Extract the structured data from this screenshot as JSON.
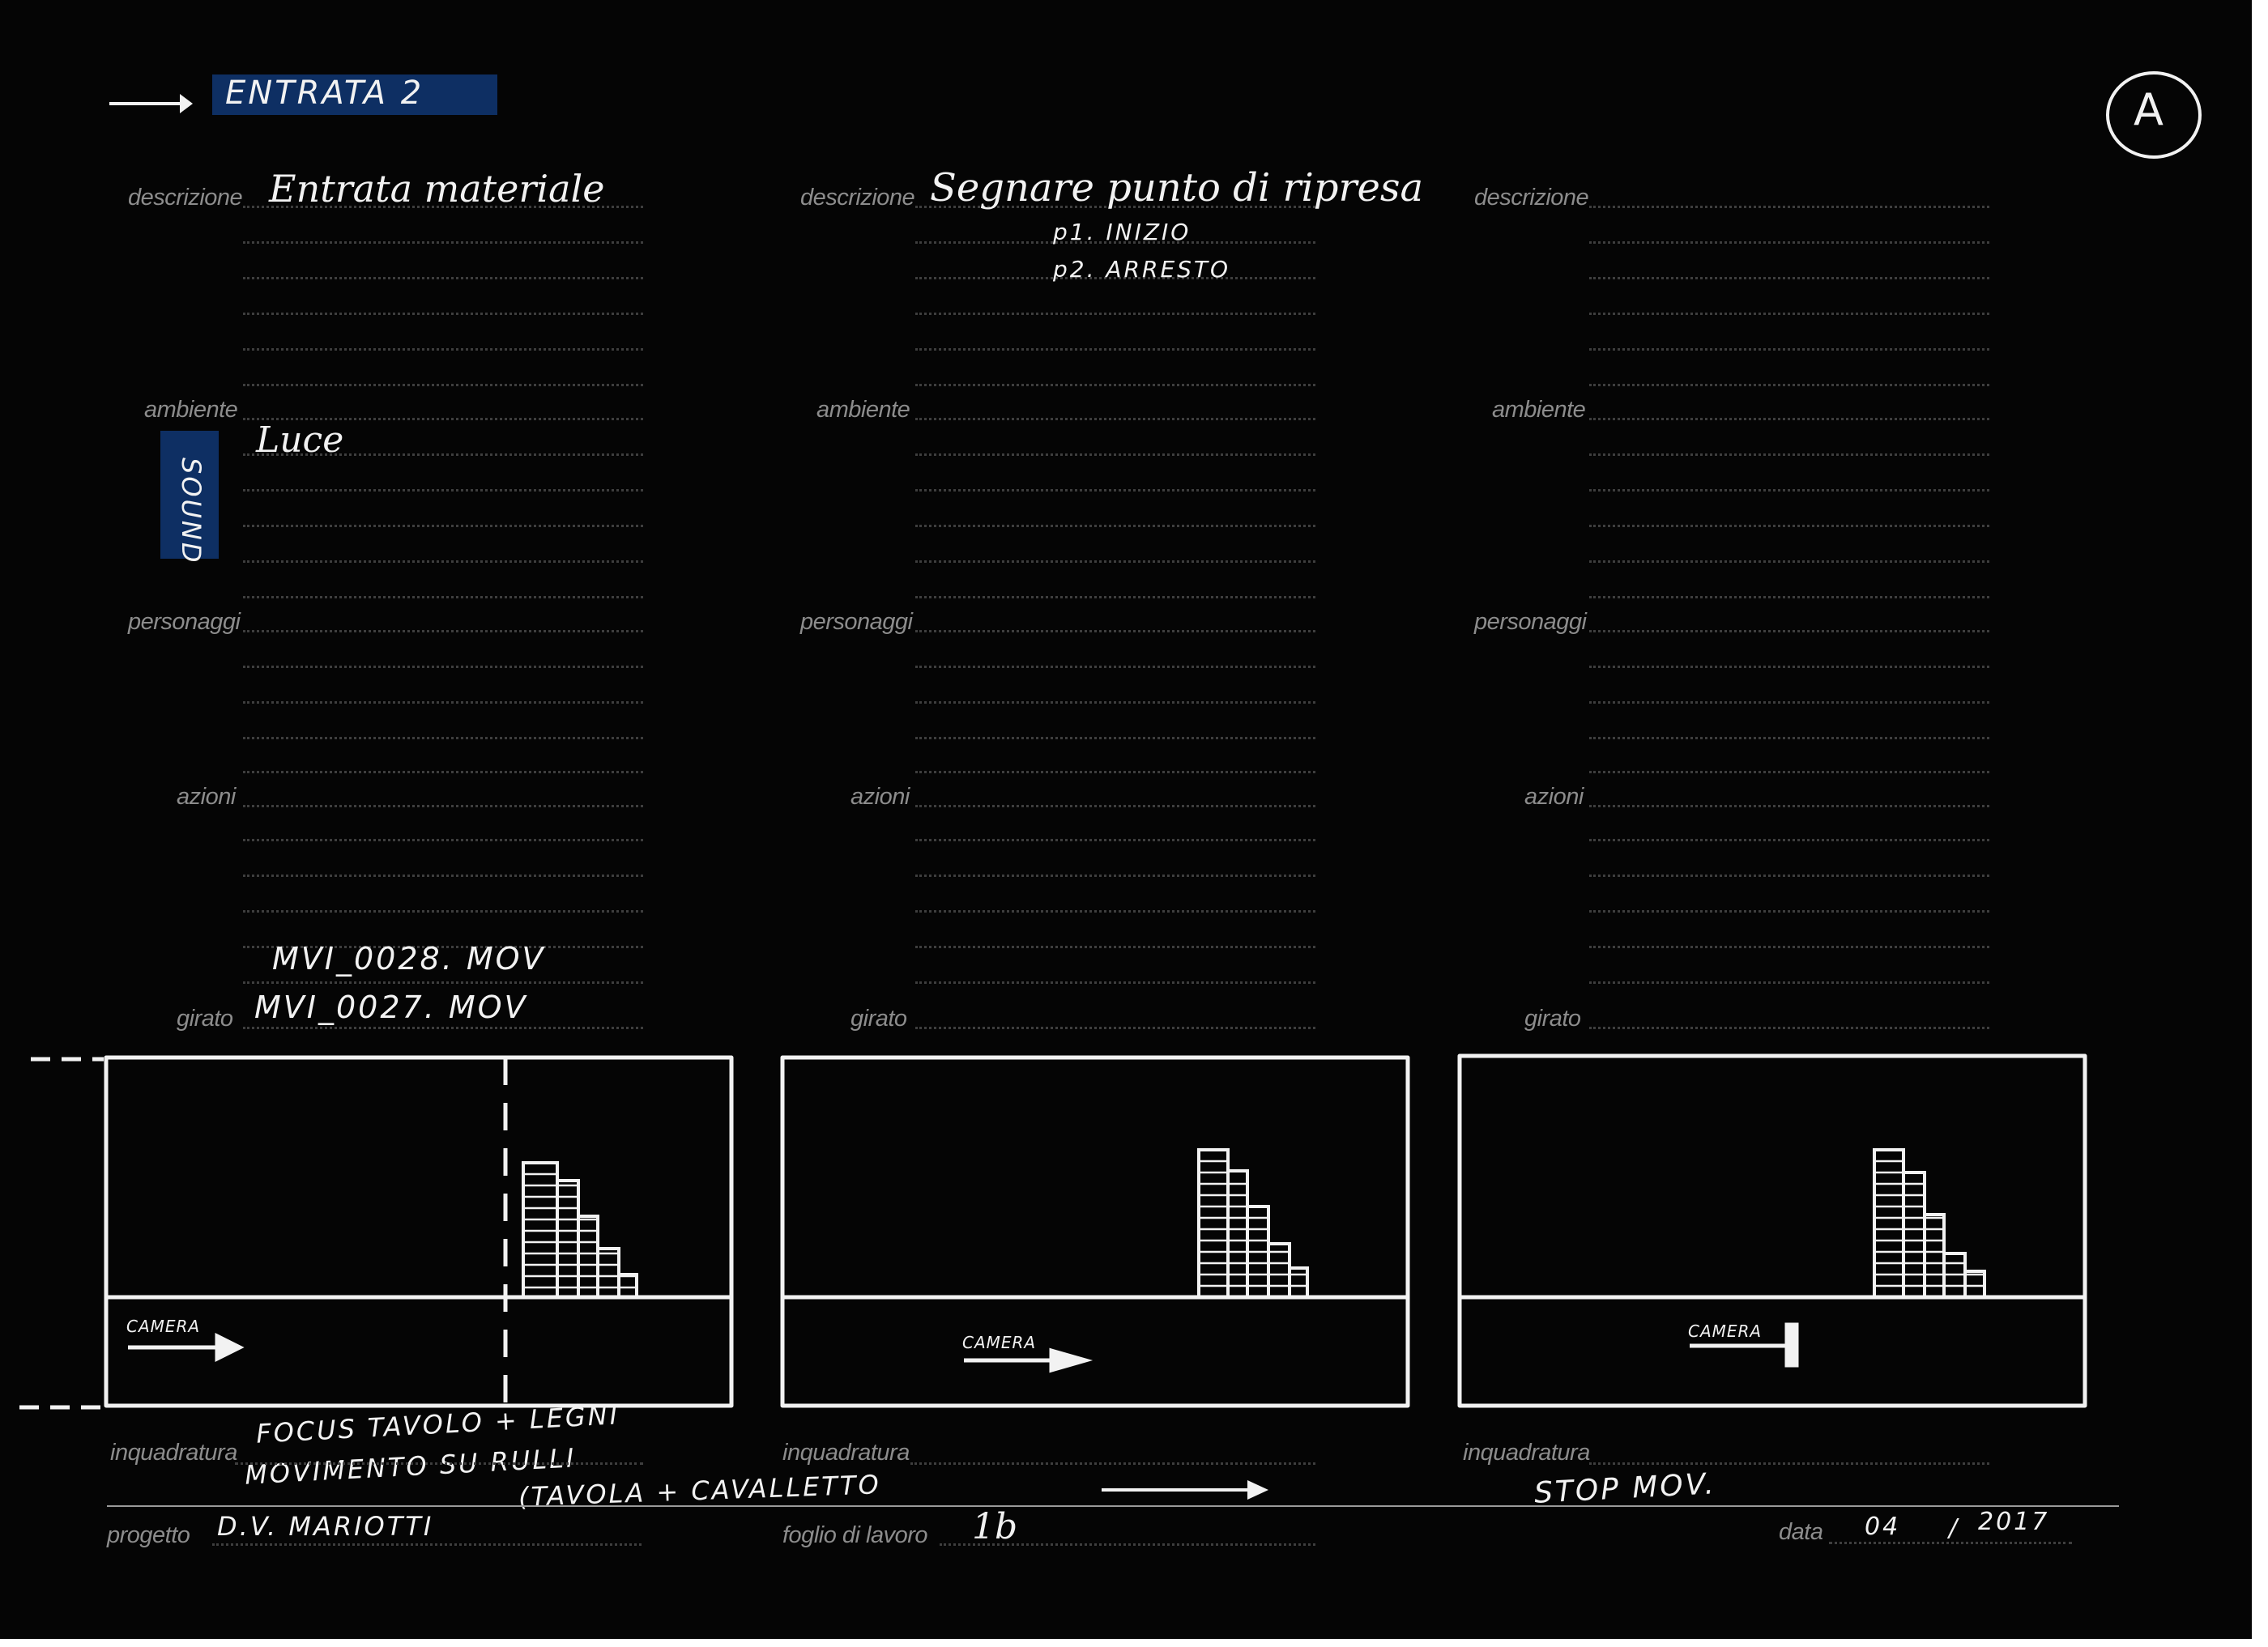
{
  "entry_tag": "ENTRATA 2",
  "sheet_letter": "A",
  "sound_tag": "SOUND",
  "field_labels": {
    "descrizione": "descrizione",
    "ambiente": "ambiente",
    "personaggi": "personaggi",
    "azioni": "azioni",
    "girato": "girato",
    "inquadratura": "inquadratura"
  },
  "panels": [
    {
      "descrizione": "Entrata materiale",
      "ambiente": "Luce",
      "girato": [
        "MVI_0028. MOV",
        "MVI_0027. MOV"
      ],
      "frame_camera": "CAMERA",
      "inquadratura": [
        "FOCUS TAVOLO + LEGNI",
        "MOVIMENTO SU RULLI",
        "(TAVOLA + CAVALLETTO"
      ]
    },
    {
      "descrizione": "Segnare punto di ripresa",
      "descrizione_notes": [
        "p1. INIZIO",
        "p2. ARRESTO"
      ],
      "frame_camera": "CAMERA"
    },
    {
      "frame_camera": "CAMERA",
      "inquadratura": [
        "STOP MOV."
      ]
    }
  ],
  "footer": {
    "progetto_label": "progetto",
    "progetto_value": "D.V. MARIOTTI",
    "foglio_label": "foglio di lavoro",
    "foglio_value": "1b",
    "data_label": "data",
    "data_day": "04",
    "data_sep": "/",
    "data_year": "2017"
  },
  "colors": {
    "paper": "#050505",
    "ink": "#f2f2f2",
    "label": "#8c8c8c",
    "tape": "#0e2f63"
  }
}
